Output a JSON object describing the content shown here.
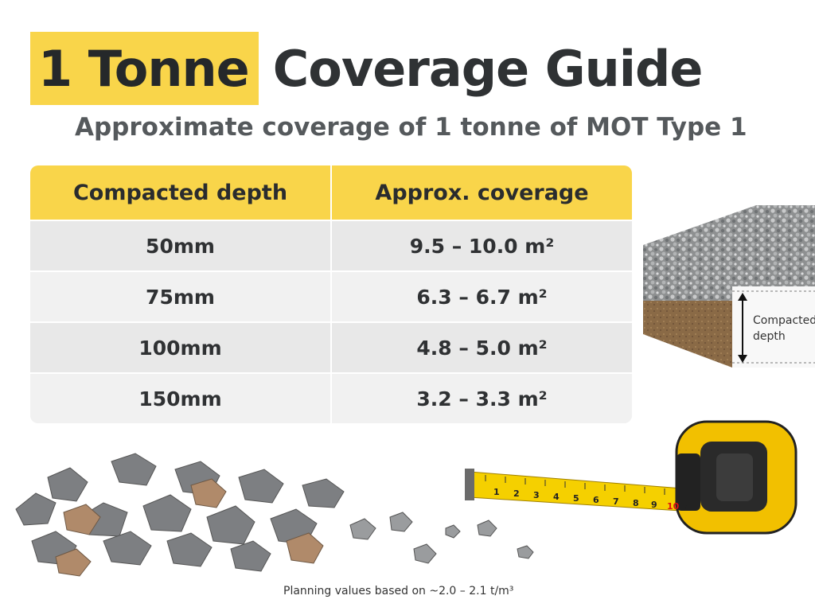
{
  "title": {
    "highlight": "1 Tonne",
    "rest": "Coverage Guide"
  },
  "subtitle": "Approximate coverage of 1 tonne of MOT Type 1",
  "table": {
    "headers": [
      "Compacted depth",
      "Approx. coverage"
    ],
    "rows": [
      [
        "50mm",
        "9.5 – 10.0 m²"
      ],
      [
        "75mm",
        "6.3 – 6.7 m²"
      ],
      [
        "100mm",
        "4.8 – 5.0 m²"
      ],
      [
        "150mm",
        "3.2 – 3.3 m²"
      ]
    ]
  },
  "sample": {
    "label": "Compacted depth"
  },
  "tape": {
    "numbers": [
      "1",
      "2",
      "3",
      "4",
      "5",
      "6",
      "7",
      "8",
      "9",
      "10",
      "8"
    ]
  },
  "footer": "Planning values based on ~2.0 – 2.1 t/m³",
  "colors": {
    "accent": "#f9d54a",
    "text": "#2f3133",
    "tape_yellow": "#f5c400"
  }
}
